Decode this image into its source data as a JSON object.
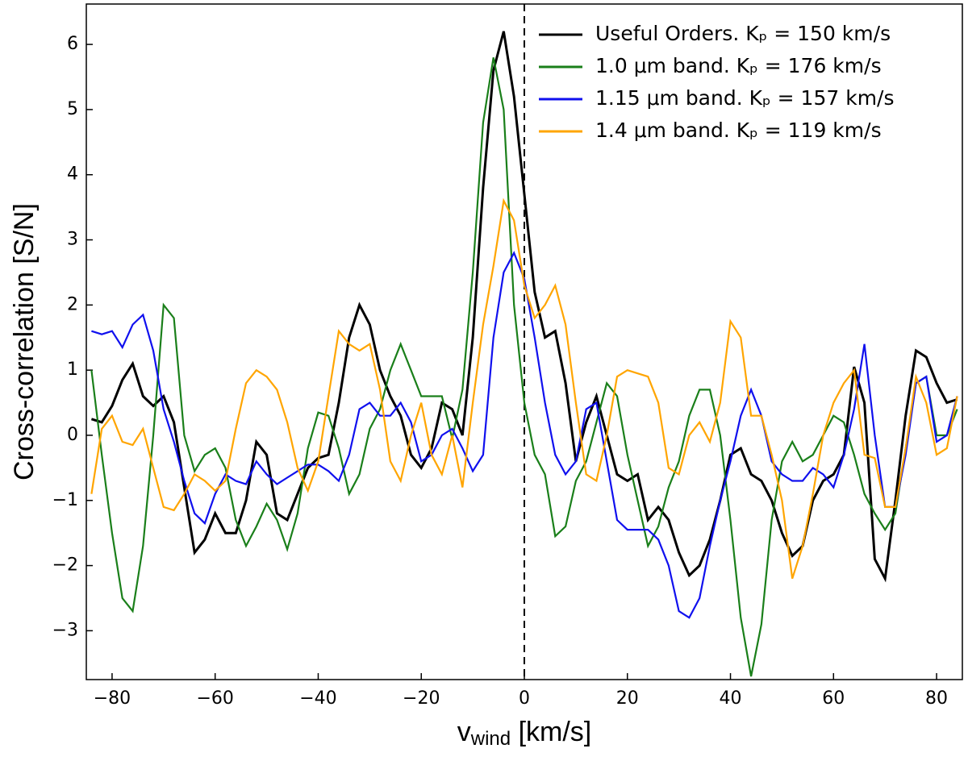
{
  "chart_data": {
    "type": "line",
    "xlabel": {
      "main": "v",
      "sub": "wind",
      "rest": " [km/s]"
    },
    "ylabel": "Cross-correlation [S/N]",
    "x": [
      -84,
      -82,
      -80,
      -78,
      -76,
      -74,
      -72,
      -70,
      -68,
      -66,
      -64,
      -62,
      -60,
      -58,
      -56,
      -54,
      -52,
      -50,
      -48,
      -46,
      -44,
      -42,
      -40,
      -38,
      -36,
      -34,
      -32,
      -30,
      -28,
      -26,
      -24,
      -22,
      -20,
      -18,
      -16,
      -14,
      -12,
      -10,
      -8,
      -6,
      -4,
      -2,
      0,
      2,
      4,
      6,
      8,
      10,
      12,
      14,
      16,
      18,
      20,
      22,
      24,
      26,
      28,
      30,
      32,
      34,
      36,
      38,
      40,
      42,
      44,
      46,
      48,
      50,
      52,
      54,
      56,
      58,
      60,
      62,
      64,
      66,
      68,
      70,
      72,
      74,
      76,
      78,
      80,
      82,
      84
    ],
    "series": [
      {
        "name": "Useful Orders. Kₚ = 150 km/s",
        "color": "#000000",
        "values": [
          0.25,
          0.2,
          0.45,
          0.85,
          1.1,
          0.6,
          0.45,
          0.6,
          0.2,
          -0.8,
          -1.8,
          -1.6,
          -1.2,
          -1.5,
          -1.5,
          -1.0,
          -0.1,
          -0.3,
          -1.2,
          -1.3,
          -0.9,
          -0.5,
          -0.35,
          -0.3,
          0.5,
          1.5,
          2.0,
          1.7,
          1.0,
          0.6,
          0.3,
          -0.3,
          -0.5,
          -0.2,
          0.5,
          0.4,
          0.0,
          1.5,
          3.8,
          5.6,
          6.2,
          5.2,
          3.7,
          2.2,
          1.5,
          1.6,
          0.8,
          -0.4,
          0.2,
          0.6,
          0.0,
          -0.6,
          -0.7,
          -0.6,
          -1.3,
          -1.1,
          -1.3,
          -1.8,
          -2.15,
          -2.0,
          -1.6,
          -1.0,
          -0.3,
          -0.2,
          -0.6,
          -0.7,
          -1.0,
          -1.5,
          -1.85,
          -1.7,
          -1.0,
          -0.7,
          -0.6,
          -0.3,
          1.05,
          0.5,
          -1.9,
          -2.2,
          -1.0,
          0.3,
          1.3,
          1.2,
          0.8,
          0.5,
          0.55
        ]
      },
      {
        "name": "1.0 μm band. Kₚ = 176 km/s",
        "color": "#1a7f1a",
        "values": [
          1.0,
          -0.3,
          -1.5,
          -2.5,
          -2.7,
          -1.7,
          0.0,
          2.0,
          1.8,
          0.0,
          -0.55,
          -0.3,
          -0.2,
          -0.5,
          -1.3,
          -1.7,
          -1.4,
          -1.05,
          -1.3,
          -1.75,
          -1.2,
          -0.2,
          0.35,
          0.3,
          -0.2,
          -0.9,
          -0.6,
          0.1,
          0.4,
          1.0,
          1.4,
          1.0,
          0.6,
          0.6,
          0.6,
          -0.05,
          0.7,
          2.5,
          4.8,
          5.8,
          5.0,
          2.0,
          0.5,
          -0.3,
          -0.6,
          -1.55,
          -1.4,
          -0.7,
          -0.4,
          0.2,
          0.8,
          0.6,
          -0.3,
          -1.0,
          -1.7,
          -1.4,
          -0.8,
          -0.4,
          0.3,
          0.7,
          0.7,
          0.0,
          -1.3,
          -2.8,
          -3.7,
          -2.9,
          -1.3,
          -0.4,
          -0.1,
          -0.4,
          -0.3,
          0.0,
          0.3,
          0.2,
          -0.3,
          -0.9,
          -1.2,
          -1.45,
          -1.2,
          -0.2,
          0.8,
          0.9,
          0.0,
          0.0,
          0.4
        ]
      },
      {
        "name": "1.15 μm band. Kₚ = 157 km/s",
        "color": "#1010ee",
        "values": [
          1.6,
          1.55,
          1.6,
          1.35,
          1.7,
          1.85,
          1.3,
          0.4,
          -0.1,
          -0.7,
          -1.2,
          -1.35,
          -0.9,
          -0.6,
          -0.7,
          -0.75,
          -0.4,
          -0.6,
          -0.75,
          -0.65,
          -0.55,
          -0.45,
          -0.45,
          -0.55,
          -0.7,
          -0.3,
          0.4,
          0.5,
          0.3,
          0.3,
          0.5,
          0.2,
          -0.4,
          -0.3,
          0.0,
          0.1,
          -0.2,
          -0.55,
          -0.3,
          1.5,
          2.5,
          2.8,
          2.4,
          1.5,
          0.5,
          -0.3,
          -0.6,
          -0.4,
          0.4,
          0.5,
          -0.4,
          -1.3,
          -1.45,
          -1.45,
          -1.45,
          -1.6,
          -2.0,
          -2.7,
          -2.8,
          -2.5,
          -1.7,
          -1.0,
          -0.4,
          0.3,
          0.7,
          0.3,
          -0.4,
          -0.6,
          -0.7,
          -0.7,
          -0.5,
          -0.6,
          -0.8,
          -0.3,
          0.4,
          1.4,
          0.0,
          -1.1,
          -1.1,
          -0.3,
          0.8,
          0.9,
          -0.1,
          0.0,
          0.6
        ]
      },
      {
        "name": "1.4 μm band. Kₚ = 119 km/s",
        "color": "#ffa500",
        "values": [
          -0.9,
          0.1,
          0.3,
          -0.1,
          -0.15,
          0.1,
          -0.5,
          -1.1,
          -1.15,
          -0.9,
          -0.6,
          -0.7,
          -0.85,
          -0.7,
          0.1,
          0.8,
          1.0,
          0.9,
          0.7,
          0.2,
          -0.5,
          -0.85,
          -0.4,
          0.6,
          1.6,
          1.4,
          1.3,
          1.4,
          0.7,
          -0.4,
          -0.7,
          0.0,
          0.5,
          -0.3,
          -0.6,
          0.0,
          -0.8,
          0.5,
          1.7,
          2.6,
          3.6,
          3.3,
          2.3,
          1.8,
          2.0,
          2.3,
          1.7,
          0.5,
          -0.6,
          -0.7,
          0.0,
          0.9,
          1.0,
          0.95,
          0.9,
          0.5,
          -0.5,
          -0.6,
          0.0,
          0.2,
          -0.1,
          0.5,
          1.75,
          1.5,
          0.3,
          0.3,
          -0.3,
          -1.0,
          -2.2,
          -1.7,
          -0.9,
          0.0,
          0.5,
          0.8,
          1.0,
          -0.3,
          -0.35,
          -1.1,
          -1.1,
          -0.2,
          0.9,
          0.5,
          -0.3,
          -0.2,
          0.6
        ]
      }
    ],
    "vline": 0,
    "xlim": [
      -85,
      85
    ],
    "xticks": [
      {
        "value": -80,
        "label": "−80"
      },
      {
        "value": -60,
        "label": "−60"
      },
      {
        "value": -40,
        "label": "−40"
      },
      {
        "value": -20,
        "label": "−20"
      },
      0,
      20,
      40,
      60,
      80
    ],
    "ylim": [
      -3.75,
      6.62
    ],
    "yticks": [
      {
        "value": -3,
        "label": "−3"
      },
      {
        "value": -2,
        "label": "−2"
      },
      {
        "value": -1,
        "label": "−1"
      },
      0,
      1,
      2,
      3,
      4,
      5,
      6
    ],
    "legend": "upper right"
  }
}
